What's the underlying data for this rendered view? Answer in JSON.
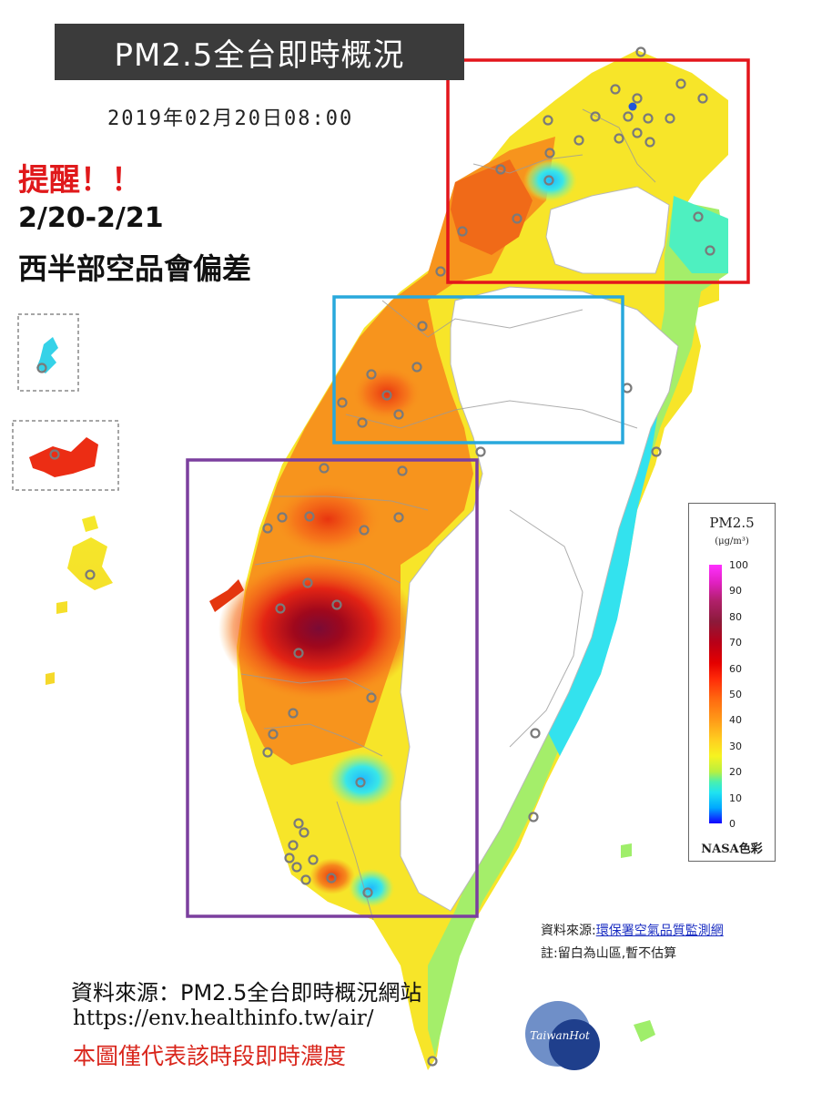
{
  "header": {
    "title": "PM2.5全台即時概況",
    "timestamp": "2019年02月20日08:00"
  },
  "reminder": {
    "title": "提醒！！",
    "dates": "2/20-2/21",
    "message": "西半部空品會偏差"
  },
  "legend": {
    "title": "PM2.5",
    "unit": "(μg/m³)",
    "ticks": [
      "100",
      "90",
      "80",
      "70",
      "60",
      "50",
      "40",
      "30",
      "20",
      "10",
      "0"
    ],
    "footer": "NASA色彩"
  },
  "sources": {
    "right_prefix": "資料來源:",
    "right_link": "環保署空氣品質監測網",
    "right_note": "註:留白為山區,暫不估算",
    "bottom_source": "資料來源：PM2.5全台即時概況網站",
    "bottom_url": "https://env.healthinfo.tw/air/",
    "disclaimer": "本圖僅代表該時段即時濃度"
  },
  "watermark": {
    "text": "TaiwanHot"
  },
  "highlight_boxes": [
    {
      "name": "northern-region",
      "color": "#e3151b"
    },
    {
      "name": "central-region",
      "color": "#28a8dc"
    },
    {
      "name": "southwest-region",
      "color": "#7b3f9e"
    }
  ],
  "colors": {
    "high": "#8b0a1a",
    "red": "#e32414",
    "orange": "#f7941d",
    "yellow": "#f5e82a",
    "green": "#9ff06a",
    "cyan": "#31e4f0",
    "blue": "#1f6fff"
  }
}
